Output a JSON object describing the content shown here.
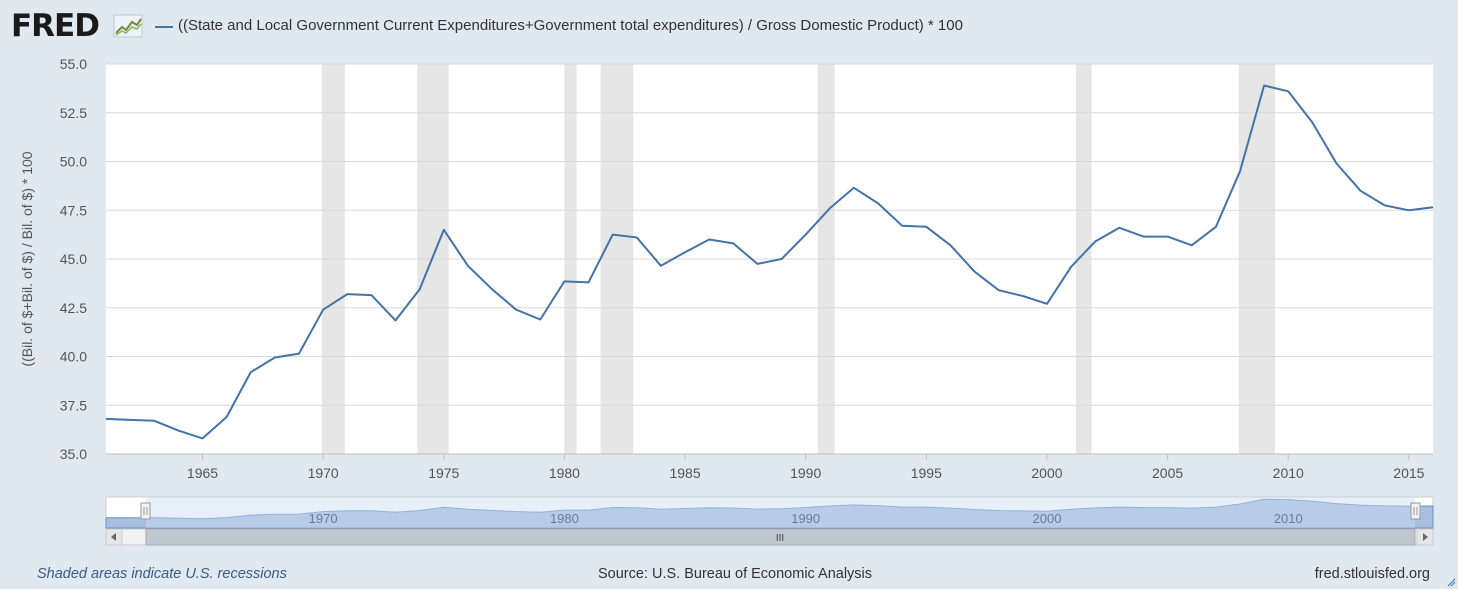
{
  "header": {
    "logo": "FRED",
    "series_label": "((State and Local Government Current Expenditures+Government total expenditures) / Gross Domestic Product) * 100"
  },
  "footer": {
    "recession_note": "Shaded areas indicate U.S. recessions",
    "source": "Source: U.S. Bureau of Economic Analysis",
    "link": "fred.stlouisfed.org"
  },
  "colors": {
    "line": "#4572a7",
    "recession": "#e6e6e6",
    "grid": "#d8d8d8",
    "page": "#e1e9f0",
    "navigator_fill": "#a9bfe0",
    "navigator_mask": "#c9dbf1"
  },
  "chart_data": {
    "type": "line",
    "title": "",
    "xlabel": "",
    "ylabel": "((Bil. of $+Bil. of $) / Bil. of $) * 100",
    "xlim": [
      1961,
      2016
    ],
    "ylim": [
      35.0,
      55.0
    ],
    "yticks": [
      "35.0",
      "37.5",
      "40.0",
      "42.5",
      "45.0",
      "47.5",
      "50.0",
      "52.5",
      "55.0"
    ],
    "xticks": [
      "1965",
      "1970",
      "1975",
      "1980",
      "1985",
      "1990",
      "1995",
      "2000",
      "2005",
      "2010",
      "2015"
    ],
    "grid": true,
    "series": [
      {
        "name": "((State and Local Government Current Expenditures+Government total expenditures) / Gross Domestic Product) * 100",
        "x": [
          1961,
          1962,
          1963,
          1964,
          1965,
          1966,
          1967,
          1968,
          1969,
          1970,
          1971,
          1972,
          1973,
          1974,
          1975,
          1976,
          1977,
          1978,
          1979,
          1980,
          1981,
          1982,
          1983,
          1984,
          1985,
          1986,
          1987,
          1988,
          1989,
          1990,
          1991,
          1992,
          1993,
          1994,
          1995,
          1996,
          1997,
          1998,
          1999,
          2000,
          2001,
          2002,
          2003,
          2004,
          2005,
          2006,
          2007,
          2008,
          2009,
          2010,
          2011,
          2012,
          2013,
          2014,
          2015,
          2016
        ],
        "values": [
          36.8,
          36.75,
          36.7,
          36.2,
          35.8,
          36.9,
          39.2,
          39.95,
          40.15,
          42.4,
          43.2,
          43.15,
          41.85,
          43.45,
          46.5,
          44.65,
          43.45,
          42.4,
          41.9,
          43.85,
          43.8,
          46.25,
          46.1,
          44.65,
          45.35,
          46.0,
          45.8,
          44.75,
          45.0,
          46.25,
          47.6,
          48.65,
          47.85,
          46.7,
          46.65,
          45.7,
          44.35,
          43.4,
          43.1,
          42.7,
          44.6,
          45.9,
          46.6,
          46.15,
          46.15,
          45.7,
          46.65,
          49.5,
          53.9,
          53.6,
          52.0,
          49.9,
          48.5,
          47.75,
          47.5,
          47.65
        ]
      }
    ],
    "recessions": [
      [
        1969.95,
        1970.9
      ],
      [
        1973.9,
        1975.2
      ],
      [
        1980.0,
        1980.5
      ],
      [
        1981.5,
        1982.85
      ],
      [
        1990.5,
        1991.2
      ],
      [
        2001.2,
        2001.85
      ],
      [
        2007.95,
        2009.45
      ]
    ],
    "navigator": {
      "labels": [
        "1970",
        "1980",
        "1990",
        "2000",
        "2010"
      ],
      "scroll_grip": "III"
    }
  }
}
